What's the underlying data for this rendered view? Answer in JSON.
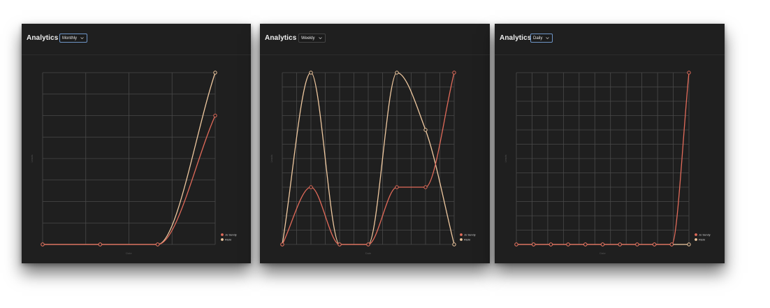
{
  "panels": [
    {
      "title": "Analytics",
      "period": "Monthly",
      "focused": true
    },
    {
      "title": "Analytics",
      "period": "Weekly",
      "focused": false
    },
    {
      "title": "Analytics",
      "period": "Daily",
      "focused": true
    }
  ],
  "chart_data": [
    {
      "type": "line",
      "ylabel": "Leads",
      "xlabel": "Date",
      "x_count": 4,
      "ylim": [
        0,
        8
      ],
      "y_grid_lines": 8,
      "x_grid_lines": 4,
      "series": [
        {
          "name": "Jo Sundy",
          "color": "#e16b5a",
          "values": [
            0,
            0,
            0,
            6
          ]
        },
        {
          "name": "Rishi",
          "color": "#f0c9a0",
          "values": [
            0,
            0,
            0,
            8
          ]
        }
      ],
      "legend": "bottom-right"
    },
    {
      "type": "line",
      "ylabel": "Leads",
      "xlabel": "Date",
      "x_count": 7,
      "ylim": [
        0,
        6
      ],
      "y_grid_lines": 12,
      "x_grid_lines": 12,
      "series": [
        {
          "name": "Jo Sundy",
          "color": "#e16b5a",
          "values": [
            0,
            2,
            0,
            0,
            2,
            2,
            6
          ]
        },
        {
          "name": "Rishi",
          "color": "#f0c9a0",
          "values": [
            0,
            6,
            0,
            0,
            6,
            4,
            0
          ]
        }
      ],
      "legend": "bottom-right"
    },
    {
      "type": "line",
      "ylabel": "Leads",
      "xlabel": "Date",
      "x_count": 11,
      "ylim": [
        0,
        1
      ],
      "y_grid_lines": 12,
      "x_grid_lines": 11,
      "series": [
        {
          "name": "Jo Sundy",
          "color": "#e16b5a",
          "values": [
            0,
            0,
            0,
            0,
            0,
            0,
            0,
            0,
            0,
            0,
            1
          ]
        },
        {
          "name": "Rishi",
          "color": "#f0c9a0",
          "values": [
            0,
            0,
            0,
            0,
            0,
            0,
            0,
            0,
            0,
            0,
            0
          ]
        }
      ],
      "legend": "bottom-right"
    }
  ]
}
